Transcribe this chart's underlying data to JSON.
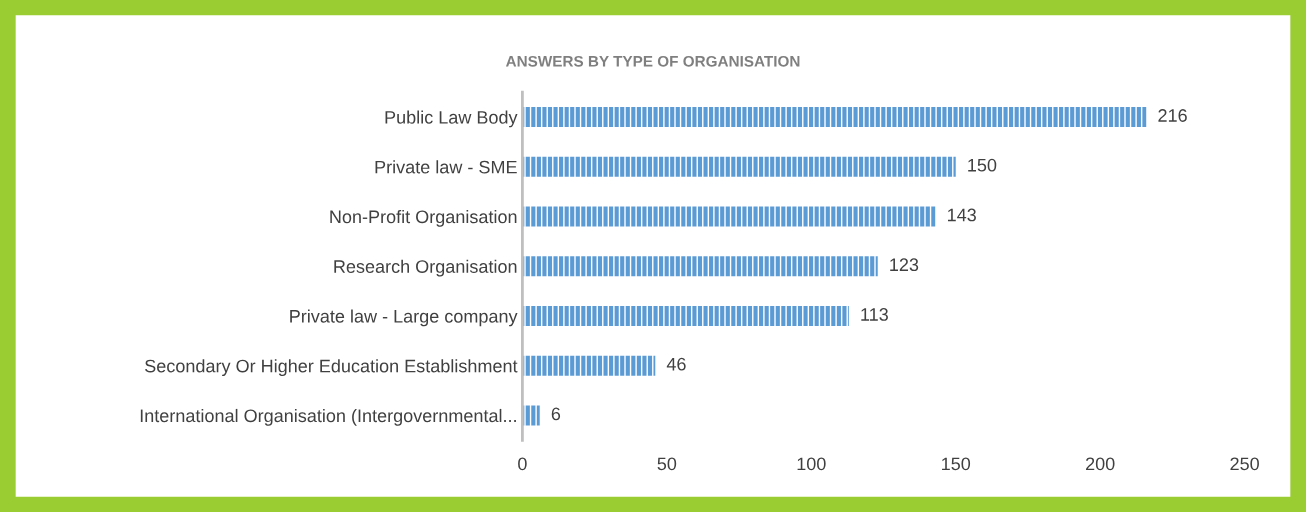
{
  "chart_data": {
    "type": "bar",
    "orientation": "horizontal",
    "title": "ANSWERS BY TYPE OF ORGANISATION",
    "categories": [
      "Public Law Body",
      "Private law - SME",
      "Non-Profit Organisation",
      "Research Organisation",
      "Private law - Large company",
      "Secondary Or Higher Education Establishment",
      "International Organisation (Intergovernmental..."
    ],
    "values": [
      216,
      150,
      143,
      123,
      113,
      46,
      6
    ],
    "color": "#5b9bd5",
    "xlim": [
      0,
      250
    ],
    "xticks": [
      0,
      50,
      100,
      150,
      200,
      250
    ],
    "data_labels": true,
    "grid": false,
    "legend": false
  }
}
